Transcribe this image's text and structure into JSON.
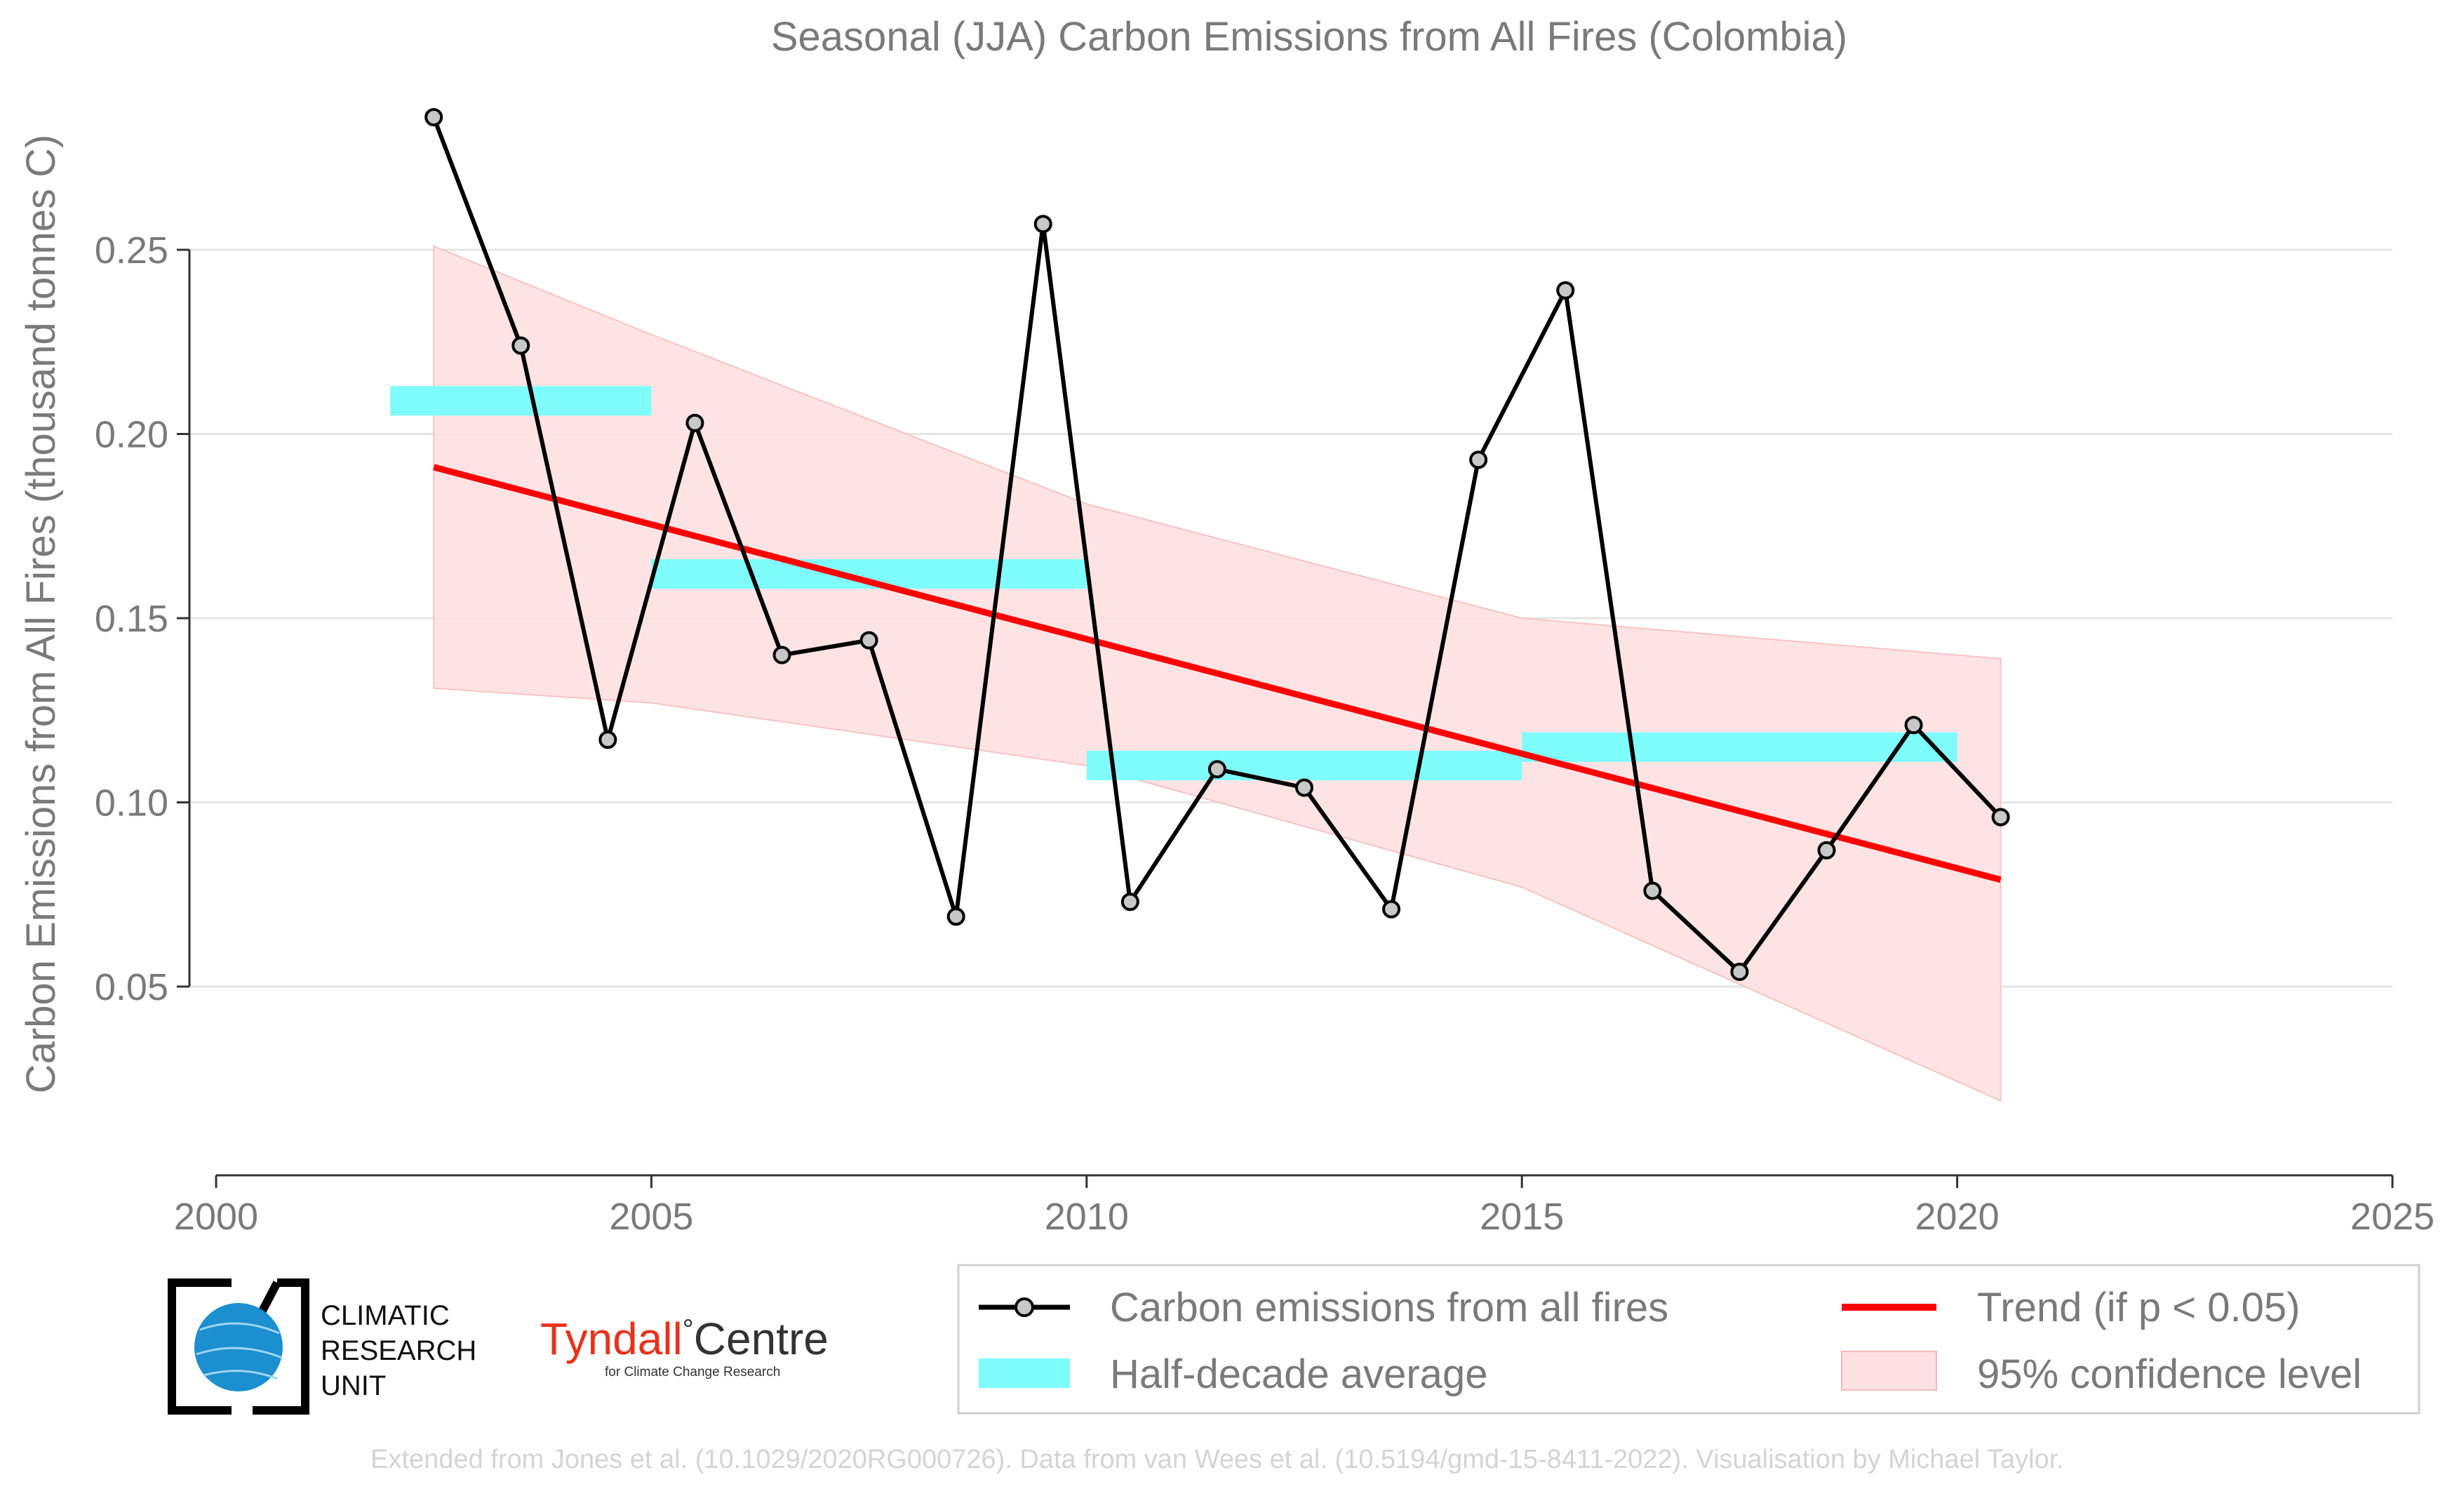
{
  "chart_data": {
    "type": "line",
    "title": "Seasonal (JJA) Carbon Emissions from All Fires (Colombia)",
    "xlabel": "",
    "ylabel": "Carbon Emissions from All Fires (thousand tonnes C)",
    "xlim": [
      2000,
      2025
    ],
    "ylim": [
      0.0,
      0.3
    ],
    "x_ticks": [
      "2000",
      "2005",
      "2010",
      "2015",
      "2020",
      "2025"
    ],
    "y_ticks": [
      "0.05",
      "0.10",
      "0.15",
      "0.20",
      "0.25"
    ],
    "grid": "horizontal",
    "legend_position": "bottom",
    "series": [
      {
        "name": "Carbon emissions from all fires",
        "type": "line",
        "color": "#000000",
        "x": [
          2002.5,
          2003.5,
          2004.5,
          2005.5,
          2006.5,
          2007.5,
          2008.5,
          2009.5,
          2010.5,
          2011.5,
          2012.5,
          2013.5,
          2014.5,
          2015.5,
          2016.5,
          2017.5,
          2018.5,
          2019.5,
          2020.5
        ],
        "y": [
          0.286,
          0.224,
          0.117,
          0.203,
          0.14,
          0.144,
          0.069,
          0.257,
          0.073,
          0.109,
          0.104,
          0.071,
          0.193,
          0.239,
          0.076,
          0.054,
          0.087,
          0.121,
          0.096
        ]
      },
      {
        "name": "Half-decade average",
        "type": "step",
        "color": "#7ffdfd",
        "segments": [
          {
            "x0": 2002,
            "x1": 2005,
            "y": 0.209
          },
          {
            "x0": 2005,
            "x1": 2010,
            "y": 0.162
          },
          {
            "x0": 2010,
            "x1": 2015,
            "y": 0.11
          },
          {
            "x0": 2015,
            "x1": 2020,
            "y": 0.115
          }
        ]
      },
      {
        "name": "Trend (if p < 0.05)",
        "type": "line",
        "color": "#ff0000",
        "x": [
          2002.5,
          2020.5
        ],
        "y": [
          0.191,
          0.079
        ]
      },
      {
        "name": "95% confidence level",
        "type": "area",
        "color": "#fde0e1",
        "x": [
          2002.5,
          2005,
          2010,
          2015,
          2020.5
        ],
        "y_upper": [
          0.251,
          0.227,
          0.181,
          0.15,
          0.139
        ],
        "y_lower": [
          0.131,
          0.127,
          0.11,
          0.077,
          0.019
        ]
      }
    ]
  },
  "legend": {
    "items": [
      {
        "label": "Carbon emissions from all fires"
      },
      {
        "label": "Trend (if p < 0.05)"
      },
      {
        "label": "Half-decade average"
      },
      {
        "label": "95% confidence level"
      }
    ]
  },
  "logos": {
    "cru": {
      "line1": "CLIMATIC",
      "line2": "RESEARCH",
      "line3": "UNIT"
    },
    "tyndall": {
      "name1": "Tyndall",
      "degree": "°",
      "name2": "Centre",
      "sub": "for Climate Change Research"
    }
  },
  "credit": "Extended from Jones et al. (10.1029/2020RG000726). Data from van Wees et al. (10.5194/gmd-15-8411-2022). Visualisation by Michael Taylor."
}
